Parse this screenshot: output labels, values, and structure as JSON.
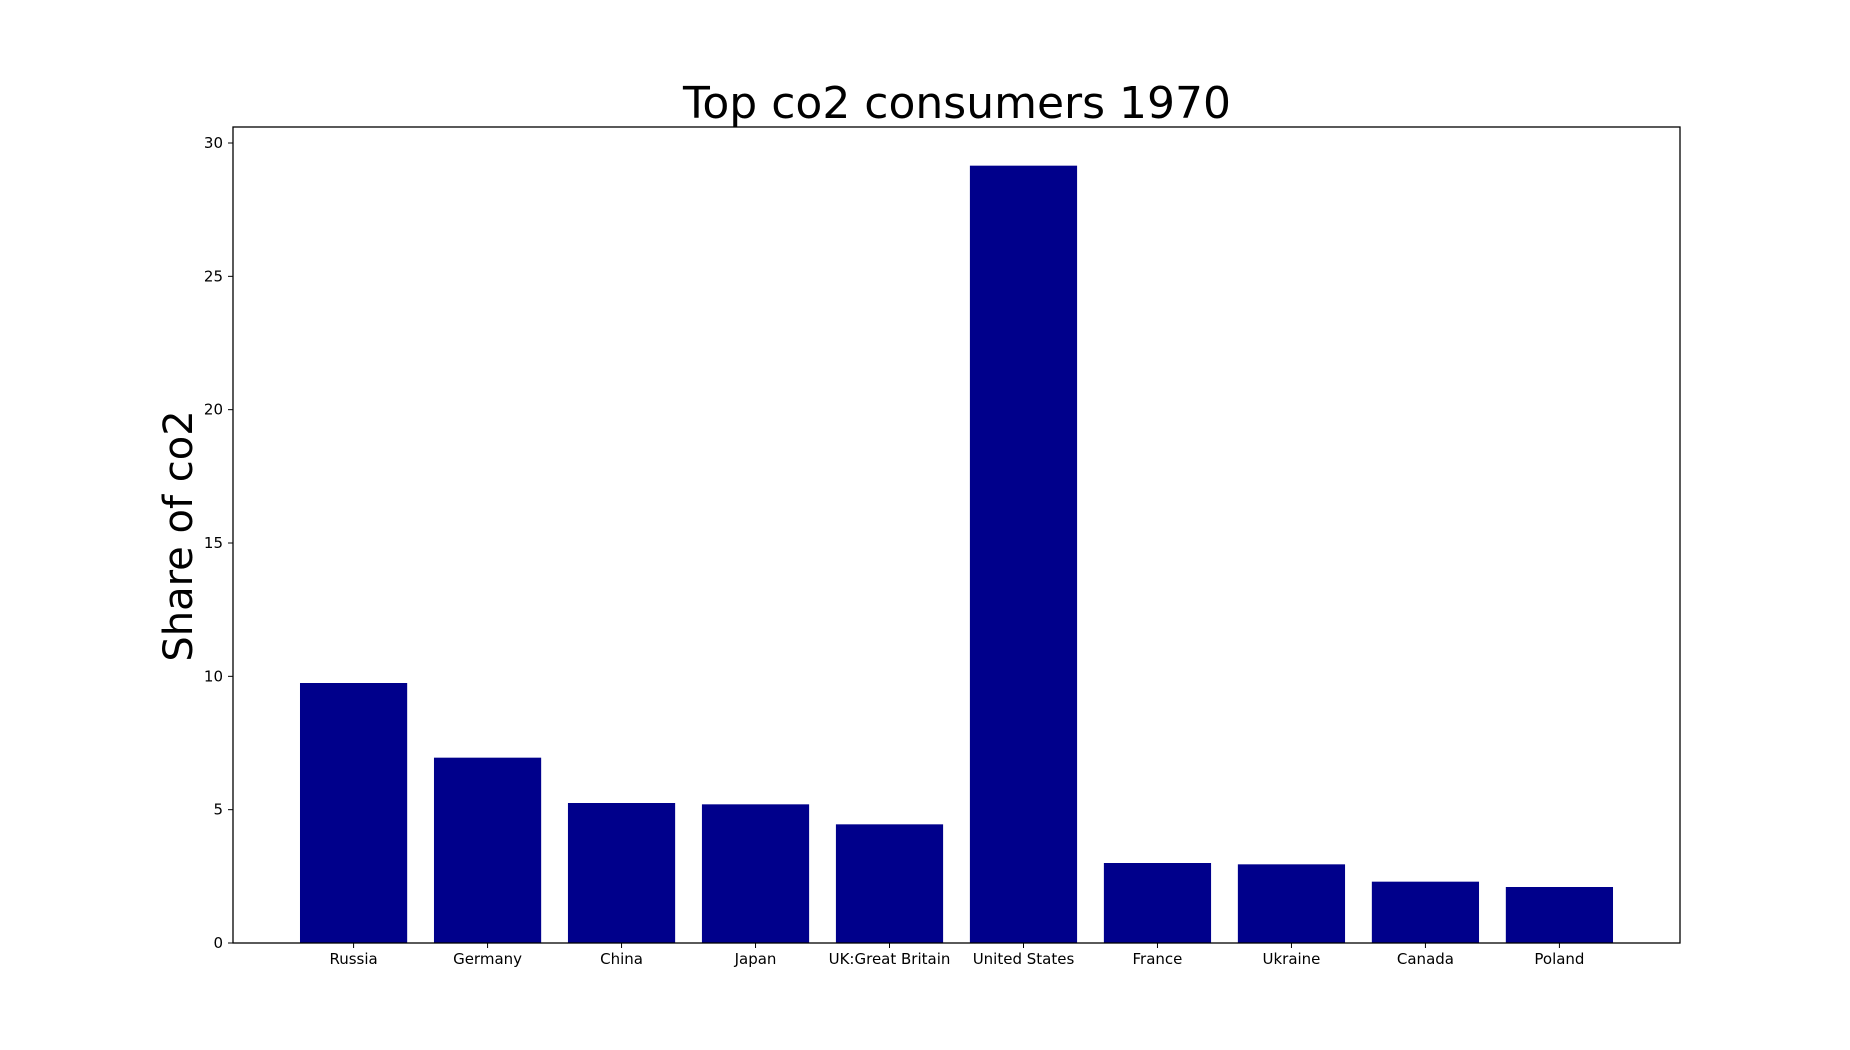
{
  "chart_data": {
    "type": "bar",
    "title": "Top co2 consumers 1970",
    "xlabel": "",
    "ylabel": "Share of co2",
    "categories": [
      "Russia",
      "Germany",
      "China",
      "Japan",
      "UK:Great Britain",
      "United States",
      "France",
      "Ukraine",
      "Canada",
      "Poland"
    ],
    "values": [
      9.75,
      6.95,
      5.25,
      5.2,
      4.45,
      29.15,
      3.0,
      2.95,
      2.3,
      2.1
    ],
    "ylim": [
      0,
      30.6
    ],
    "yticks": [
      0,
      5,
      10,
      15,
      20,
      25,
      30
    ],
    "bar_color": "#00008b",
    "grid": false,
    "legend": "none"
  }
}
